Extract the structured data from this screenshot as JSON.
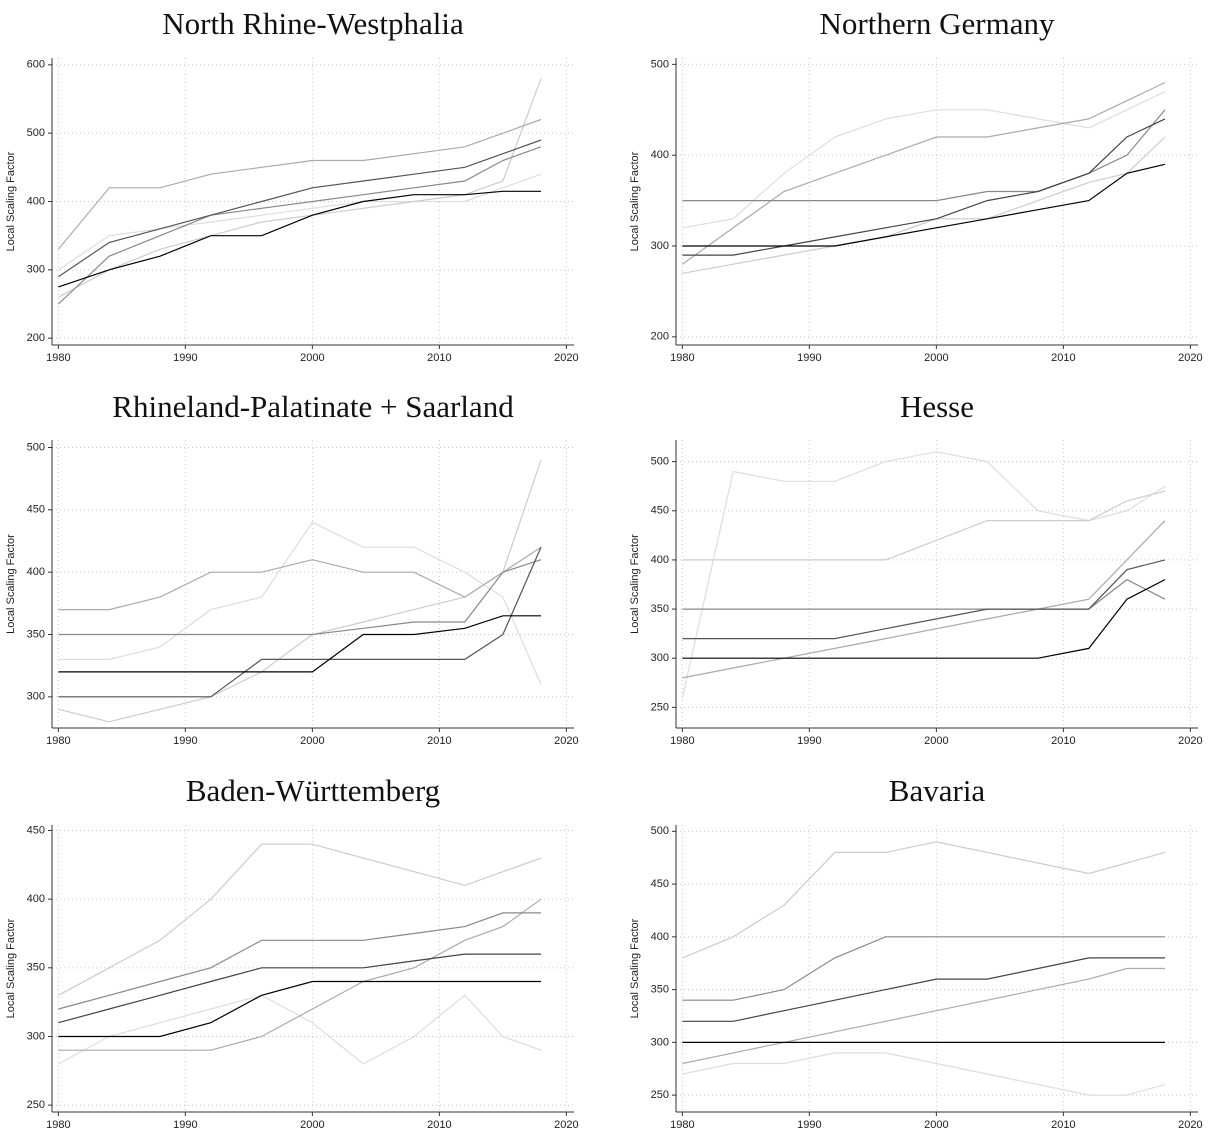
{
  "chart_data": [
    {
      "type": "line",
      "title": "North Rhine-Westphalia",
      "y_label": "Local Scaling Factor",
      "x": [
        1980,
        1984,
        1988,
        1992,
        1996,
        2000,
        2004,
        2008,
        2012,
        2015,
        2018
      ],
      "series": [
        {
          "color": "#000000",
          "values": [
            275,
            300,
            320,
            350,
            350,
            380,
            400,
            410,
            410,
            415,
            415
          ]
        },
        {
          "color": "#555555",
          "values": [
            290,
            340,
            360,
            380,
            400,
            420,
            430,
            440,
            450,
            470,
            490
          ]
        },
        {
          "color": "#888888",
          "values": [
            250,
            320,
            350,
            380,
            390,
            400,
            410,
            420,
            430,
            460,
            480
          ]
        },
        {
          "color": "#aaaaaa",
          "values": [
            330,
            420,
            420,
            440,
            450,
            460,
            460,
            470,
            480,
            500,
            520
          ]
        },
        {
          "color": "#cccccc",
          "values": [
            260,
            300,
            330,
            350,
            370,
            380,
            390,
            400,
            410,
            430,
            580
          ]
        },
        {
          "color": "#dddddd",
          "values": [
            300,
            350,
            360,
            370,
            380,
            390,
            400,
            400,
            400,
            420,
            440
          ]
        }
      ],
      "xlim": [
        1979.5,
        2020.6
      ],
      "ylim": [
        190,
        610
      ],
      "xticks": [
        1980,
        1990,
        2000,
        2010,
        2020
      ],
      "yticks": [
        200,
        300,
        400,
        500,
        600
      ],
      "grid": true
    },
    {
      "type": "line",
      "title": "Northern Germany",
      "y_label": "Local Scaling Factor",
      "x": [
        1980,
        1984,
        1988,
        1992,
        1996,
        2000,
        2004,
        2008,
        2012,
        2015,
        2018
      ],
      "series": [
        {
          "color": "#000000",
          "values": [
            300,
            300,
            300,
            300,
            310,
            320,
            330,
            340,
            350,
            380,
            390
          ]
        },
        {
          "color": "#444444",
          "values": [
            290,
            290,
            300,
            310,
            320,
            330,
            350,
            360,
            380,
            420,
            440
          ]
        },
        {
          "color": "#888888",
          "values": [
            350,
            350,
            350,
            350,
            350,
            350,
            360,
            360,
            380,
            400,
            450
          ]
        },
        {
          "color": "#aaaaaa",
          "values": [
            280,
            320,
            360,
            380,
            400,
            420,
            420,
            430,
            440,
            460,
            480
          ]
        },
        {
          "color": "#cccccc",
          "values": [
            270,
            280,
            290,
            300,
            310,
            330,
            330,
            350,
            370,
            380,
            420
          ]
        },
        {
          "color": "#dddddd",
          "values": [
            320,
            330,
            380,
            420,
            440,
            450,
            450,
            440,
            430,
            450,
            470
          ]
        }
      ],
      "xlim": [
        1979.5,
        2020.6
      ],
      "ylim": [
        191,
        507
      ],
      "xticks": [
        1980,
        1990,
        2000,
        2010,
        2020
      ],
      "yticks": [
        200,
        300,
        400,
        500
      ],
      "grid": true
    },
    {
      "type": "line",
      "title": "Rhineland-Palatinate + Saarland",
      "y_label": "Local Scaling Factor",
      "x": [
        1980,
        1984,
        1988,
        1992,
        1996,
        2000,
        2004,
        2008,
        2012,
        2015,
        2018
      ],
      "series": [
        {
          "color": "#000000",
          "values": [
            320,
            320,
            320,
            320,
            320,
            320,
            350,
            350,
            355,
            365,
            365
          ]
        },
        {
          "color": "#555555",
          "values": [
            300,
            300,
            300,
            300,
            330,
            330,
            330,
            330,
            330,
            350,
            420
          ]
        },
        {
          "color": "#888888",
          "values": [
            350,
            350,
            350,
            350,
            350,
            350,
            355,
            360,
            360,
            400,
            410
          ]
        },
        {
          "color": "#aaaaaa",
          "values": [
            370,
            370,
            380,
            400,
            400,
            410,
            400,
            400,
            380,
            400,
            420
          ]
        },
        {
          "color": "#cccccc",
          "values": [
            290,
            280,
            290,
            300,
            320,
            350,
            360,
            370,
            380,
            400,
            490
          ]
        },
        {
          "color": "#dddddd",
          "values": [
            330,
            330,
            340,
            370,
            380,
            440,
            420,
            420,
            400,
            380,
            310
          ]
        }
      ],
      "xlim": [
        1979.5,
        2020.6
      ],
      "ylim": [
        275,
        506
      ],
      "xticks": [
        1980,
        1990,
        2000,
        2010,
        2020
      ],
      "yticks": [
        300,
        350,
        400,
        450,
        500
      ],
      "grid": true
    },
    {
      "type": "line",
      "title": "Hesse",
      "y_label": "Local Scaling Factor",
      "x": [
        1980,
        1984,
        1988,
        1992,
        1996,
        2000,
        2004,
        2008,
        2012,
        2015,
        2018
      ],
      "series": [
        {
          "color": "#000000",
          "values": [
            300,
            300,
            300,
            300,
            300,
            300,
            300,
            300,
            310,
            360,
            380
          ]
        },
        {
          "color": "#555555",
          "values": [
            320,
            320,
            320,
            320,
            330,
            340,
            350,
            350,
            350,
            390,
            400
          ]
        },
        {
          "color": "#888888",
          "values": [
            350,
            350,
            350,
            350,
            350,
            350,
            350,
            350,
            350,
            380,
            360
          ]
        },
        {
          "color": "#aaaaaa",
          "values": [
            280,
            290,
            300,
            310,
            320,
            330,
            340,
            350,
            360,
            400,
            440
          ]
        },
        {
          "color": "#cccccc",
          "values": [
            400,
            400,
            400,
            400,
            400,
            420,
            440,
            440,
            440,
            460,
            470
          ]
        },
        {
          "color": "#dddddd",
          "values": [
            260,
            490,
            480,
            480,
            500,
            510,
            500,
            450,
            440,
            450,
            475
          ]
        }
      ],
      "xlim": [
        1979.5,
        2020.6
      ],
      "ylim": [
        229,
        522
      ],
      "xticks": [
        1980,
        1990,
        2000,
        2010,
        2020
      ],
      "yticks": [
        250,
        300,
        350,
        400,
        450,
        500
      ],
      "grid": true
    },
    {
      "type": "line",
      "title": "Baden-Württemberg",
      "y_label": "Local Scaling Factor",
      "x": [
        1980,
        1984,
        1988,
        1992,
        1996,
        2000,
        2004,
        2008,
        2012,
        2015,
        2018
      ],
      "series": [
        {
          "color": "#000000",
          "values": [
            300,
            300,
            300,
            310,
            330,
            340,
            340,
            340,
            340,
            340,
            340
          ]
        },
        {
          "color": "#444444",
          "values": [
            310,
            320,
            330,
            340,
            350,
            350,
            350,
            355,
            360,
            360,
            360
          ]
        },
        {
          "color": "#888888",
          "values": [
            320,
            330,
            340,
            350,
            370,
            370,
            370,
            375,
            380,
            390,
            390
          ]
        },
        {
          "color": "#aaaaaa",
          "values": [
            290,
            290,
            290,
            290,
            300,
            320,
            340,
            350,
            370,
            380,
            400
          ]
        },
        {
          "color": "#cccccc",
          "values": [
            330,
            350,
            370,
            400,
            440,
            440,
            430,
            420,
            410,
            420,
            430
          ]
        },
        {
          "color": "#dddddd",
          "values": [
            280,
            300,
            310,
            320,
            330,
            310,
            280,
            300,
            330,
            300,
            290
          ]
        }
      ],
      "xlim": [
        1979.5,
        2020.6
      ],
      "ylim": [
        245,
        454
      ],
      "xticks": [
        1980,
        1990,
        2000,
        2010,
        2020
      ],
      "yticks": [
        250,
        300,
        350,
        400,
        450
      ],
      "grid": true
    },
    {
      "type": "line",
      "title": "Bavaria",
      "y_label": "Local Scaling Factor",
      "x": [
        1980,
        1984,
        1988,
        1992,
        1996,
        2000,
        2004,
        2008,
        2012,
        2015,
        2018
      ],
      "series": [
        {
          "color": "#000000",
          "values": [
            300,
            300,
            300,
            300,
            300,
            300,
            300,
            300,
            300,
            300,
            300
          ]
        },
        {
          "color": "#444444",
          "values": [
            320,
            320,
            330,
            340,
            350,
            360,
            360,
            370,
            380,
            380,
            380
          ]
        },
        {
          "color": "#888888",
          "values": [
            340,
            340,
            350,
            380,
            400,
            400,
            400,
            400,
            400,
            400,
            400
          ]
        },
        {
          "color": "#aaaaaa",
          "values": [
            280,
            290,
            300,
            310,
            320,
            330,
            340,
            350,
            360,
            370,
            370
          ]
        },
        {
          "color": "#cccccc",
          "values": [
            380,
            400,
            430,
            480,
            480,
            490,
            480,
            470,
            460,
            470,
            480
          ]
        },
        {
          "color": "#dddddd",
          "values": [
            270,
            280,
            280,
            290,
            290,
            280,
            270,
            260,
            250,
            250,
            260
          ]
        }
      ],
      "xlim": [
        1979.5,
        2020.6
      ],
      "ylim": [
        234,
        506
      ],
      "xticks": [
        1980,
        1990,
        2000,
        2010,
        2020
      ],
      "yticks": [
        250,
        300,
        350,
        400,
        450,
        500
      ],
      "grid": true
    }
  ]
}
